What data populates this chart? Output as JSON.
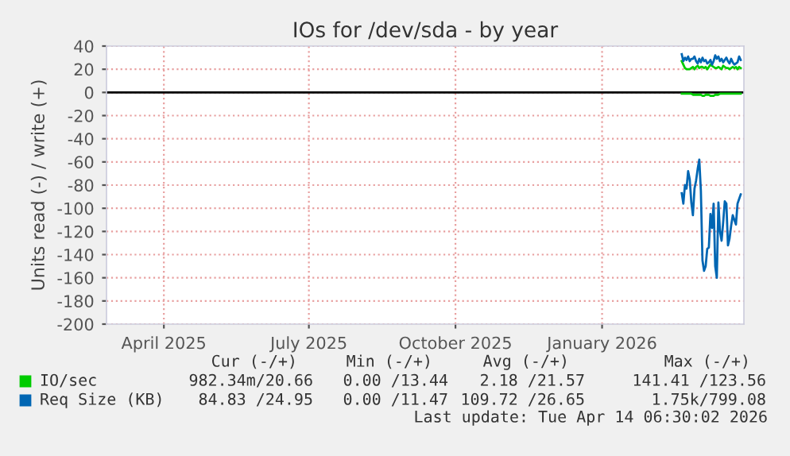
{
  "chart_data": {
    "type": "line",
    "title": "IOs for /dev/sda - by year",
    "ylabel": "Units read (-) / write (+)",
    "x": [
      "2026-03-06",
      "2026-03-07",
      "2026-03-08",
      "2026-03-09",
      "2026-03-10",
      "2026-03-11",
      "2026-03-12",
      "2026-03-13",
      "2026-03-14",
      "2026-03-15",
      "2026-03-16",
      "2026-03-17",
      "2026-03-18",
      "2026-03-19",
      "2026-03-20",
      "2026-03-21",
      "2026-03-22",
      "2026-03-23",
      "2026-03-24",
      "2026-03-25",
      "2026-03-26",
      "2026-03-27",
      "2026-03-28",
      "2026-03-29",
      "2026-03-30",
      "2026-03-31",
      "2026-04-01",
      "2026-04-02",
      "2026-04-03",
      "2026-04-04",
      "2026-04-05",
      "2026-04-06",
      "2026-04-07",
      "2026-04-08",
      "2026-04-09",
      "2026-04-10",
      "2026-04-11",
      "2026-04-12"
    ],
    "series": [
      {
        "name": "IO/sec",
        "color": "#00cc00",
        "values": [
          27,
          24,
          21,
          20,
          20,
          20,
          21,
          22,
          20,
          22,
          23,
          21,
          22,
          22,
          21,
          22,
          20,
          22,
          24,
          23,
          22,
          21,
          21,
          22,
          21,
          20,
          23,
          22,
          21,
          21,
          20,
          21,
          22,
          21,
          22,
          20,
          22,
          21
        ]
      },
      {
        "color": "#00cc00",
        "values": [
          -1,
          -1,
          -1,
          -1,
          -1,
          -1,
          -1,
          -2,
          -2,
          -2,
          -2,
          -2,
          -2,
          -3,
          -3,
          -2,
          -2,
          -2,
          -3,
          -3,
          -3,
          -2,
          -2,
          -2,
          -1,
          -1,
          -1,
          -1,
          -1,
          -1,
          -1,
          -1,
          -1,
          -1,
          -1,
          -1,
          -1,
          -1
        ]
      },
      {
        "name": "Req Size (KB)",
        "color": "#0066b3",
        "values": [
          33,
          27,
          30,
          28,
          31,
          27,
          29,
          29,
          31,
          27,
          25,
          29,
          26,
          30,
          27,
          28,
          25,
          26,
          28,
          24,
          27,
          32,
          29,
          31,
          27,
          29,
          26,
          28,
          30,
          27,
          25,
          29,
          26,
          24,
          25,
          26,
          31,
          28
        ]
      },
      {
        "color": "#0066b3",
        "values": [
          -87,
          -96,
          -80,
          -83,
          -68,
          -75,
          -95,
          -106,
          -83,
          -76,
          -66,
          -58,
          -85,
          -145,
          -154,
          -150,
          -135,
          -134,
          -105,
          -117,
          -96,
          -150,
          -160,
          -95,
          -120,
          -128,
          -112,
          -94,
          -96,
          -132,
          -126,
          -115,
          -106,
          -110,
          -114,
          -96,
          -92,
          -88
        ]
      }
    ],
    "xlim": [
      "2025-03-10",
      "2026-04-14"
    ],
    "xticks": [
      {
        "value": "2025-04-15",
        "label": "April 2025"
      },
      {
        "value": "2025-07-15",
        "label": "July 2025"
      },
      {
        "value": "2025-10-15",
        "label": "October 2025"
      },
      {
        "value": "2026-01-15",
        "label": "January 2026"
      }
    ],
    "ylim": [
      -200,
      40
    ],
    "yticks": [
      -200,
      -180,
      -160,
      -140,
      -120,
      -100,
      -80,
      -60,
      -40,
      -20,
      0,
      20,
      40
    ],
    "grid": true,
    "legend": "bottom",
    "marker": "none",
    "line_style": "solid",
    "ref_lines": [
      {
        "axis": "y",
        "value": 0,
        "color": "#000000"
      }
    ],
    "annotations": [
      "Cur (-/+)",
      "Min (-/+)",
      "Avg (-/+)",
      "Max (-/+)",
      "982.34m/20.66",
      "0.00 /13.44",
      "2.18 /21.57",
      "141.41 /123.56",
      "84.83 /24.95",
      "0.00 /11.47",
      "109.72 /26.65",
      "1.75k/799.08",
      "Last update: Tue Apr 14 06:30:02 2026"
    ]
  }
}
